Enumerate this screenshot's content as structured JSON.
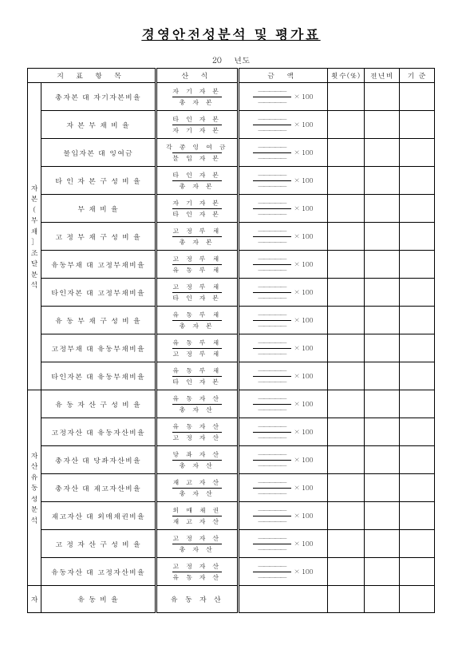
{
  "title": "경영안전성분석 및 평가표",
  "year_prefix": "20",
  "year_label": "년도",
  "headers": {
    "item": "지 표 항 목",
    "calc": "산   식",
    "amount": "금   액",
    "points": "횟수(%)",
    "prev": "전년비",
    "std": "기 준"
  },
  "dash_top": "—————",
  "dash_bot": "—————",
  "x100": "× 100",
  "cat1_lines": [
    "자",
    "본",
    "",
    "(",
    "부",
    "채",
    "〕",
    "조",
    "달",
    "분",
    "석"
  ],
  "rows1": [
    {
      "item": "총자본 대 자기자본비율",
      "num": "자 기 자 본",
      "den": "총  자  본"
    },
    {
      "item": "자 본 부 채 비 율",
      "num": "타 인 자 본",
      "den": "자 기 자 본"
    },
    {
      "item": "불입자본 대 잉여금",
      "num": "각 종 잉 여 금",
      "den": "불 입 자 본"
    },
    {
      "item": "타 인 자 본 구 성 비 율",
      "num": "타 인 자 본",
      "den": "총  자  본"
    },
    {
      "item": "부  채  비  율",
      "num": "자 기 자 본",
      "den": "타 인 자 본"
    },
    {
      "item": "고 정 부 채 구 성 비 율",
      "num": "고 정 부 채",
      "den": "총  자  본"
    },
    {
      "item": "유동부채 대 고정부채비율",
      "num": "고 정 부 채",
      "den": "유 동 부 채"
    },
    {
      "item": "타인자본 대 고정부채비율",
      "num": "고 정 부 채",
      "den": "타 인 자 본"
    },
    {
      "item": "유 동 부 채 구 성 비 율",
      "num": "유 동 부 채",
      "den": "총  자  본"
    },
    {
      "item": "고정부채 대 유동부채비율",
      "num": "유 동 부 채",
      "den": "고 정 부 채"
    },
    {
      "item": "타인자본 대 유동부채비율",
      "num": "유 동 부 채",
      "den": "타 인 자 본"
    }
  ],
  "cat2_lines": [
    "자",
    "산",
    "유",
    "동",
    "성",
    "분",
    "석"
  ],
  "rows2": [
    {
      "item": "유 동 자 산 구 성 비 율",
      "num": "유 동 자 산",
      "den": "총  자  산"
    },
    {
      "item": "고정자산 대 유동자산비율",
      "num": "유 동 자 산",
      "den": "고 정 자 산"
    },
    {
      "item": "총자산 대 당좌자산비율",
      "num": "당 좌 자 산",
      "den": "총  자  산"
    },
    {
      "item": "총자산 대 재고자산비율",
      "num": "재 고 자 산",
      "den": "총  자  산"
    },
    {
      "item": "재고자산 대 외매채권비율",
      "num": "외 매 채 권",
      "den": "재 고 자 산"
    },
    {
      "item": "고 정 자 산 구 성 비 율",
      "num": "고 정 자 산",
      "den": "총  자  산"
    },
    {
      "item": "유동자산 대 고정자산비율",
      "num": "고 정 자 산",
      "den": "유 동 자 산"
    }
  ],
  "cat3": "자",
  "row3": {
    "item": "유  동  비  율",
    "num": "유 동 자 산"
  }
}
